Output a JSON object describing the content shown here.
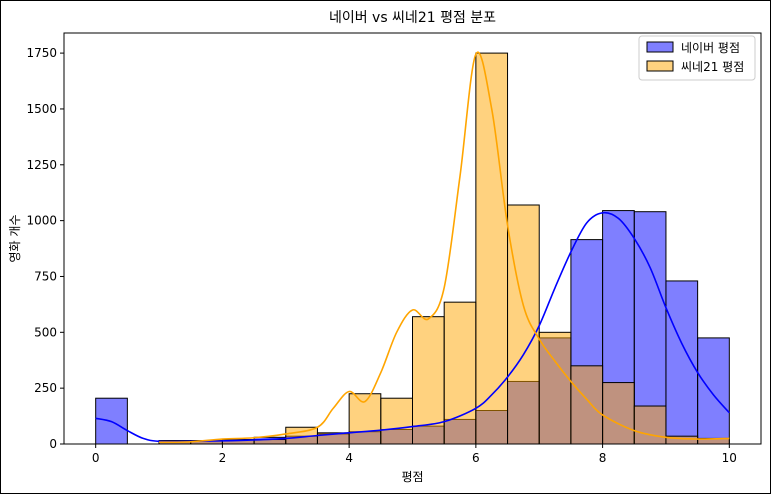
{
  "chart_data": {
    "type": "bar",
    "subtype": "histogram-with-kde",
    "title": "네이버 vs 씨네21 평점 분포",
    "xlabel": "평점",
    "ylabel": "영화 개수",
    "xlim": [
      -0.5,
      10.5
    ],
    "ylim": [
      0,
      1840
    ],
    "x_ticks": [
      0,
      2,
      4,
      6,
      8,
      10
    ],
    "y_ticks": [
      0,
      250,
      500,
      750,
      1000,
      1250,
      1500,
      1750
    ],
    "bin_edges": [
      0,
      0.5,
      1,
      1.5,
      2,
      2.5,
      3,
      3.5,
      4,
      4.5,
      5,
      5.5,
      6,
      6.5,
      7,
      7.5,
      8,
      8.5,
      9,
      9.5,
      10
    ],
    "grid": false,
    "legend_position": "top-right",
    "series": [
      {
        "name": "네이버 평점",
        "color": "#0000ff",
        "bar_fill": "#7f7fff",
        "values": [
          205,
          0,
          15,
          15,
          20,
          30,
          35,
          45,
          55,
          65,
          80,
          110,
          150,
          280,
          475,
          915,
          1045,
          1040,
          730,
          475
        ],
        "kde": [
          [
            0,
            115
          ],
          [
            0.25,
            100
          ],
          [
            0.5,
            60
          ],
          [
            0.75,
            25
          ],
          [
            1,
            12
          ],
          [
            1.5,
            12
          ],
          [
            2,
            14
          ],
          [
            2.5,
            18
          ],
          [
            3,
            25
          ],
          [
            3.5,
            38
          ],
          [
            4,
            50
          ],
          [
            4.5,
            62
          ],
          [
            5,
            78
          ],
          [
            5.5,
            100
          ],
          [
            6,
            160
          ],
          [
            6.25,
            220
          ],
          [
            6.5,
            300
          ],
          [
            6.75,
            400
          ],
          [
            7,
            530
          ],
          [
            7.25,
            700
          ],
          [
            7.5,
            860
          ],
          [
            7.75,
            990
          ],
          [
            8,
            1035
          ],
          [
            8.25,
            1010
          ],
          [
            8.5,
            920
          ],
          [
            8.75,
            790
          ],
          [
            9,
            610
          ],
          [
            9.25,
            450
          ],
          [
            9.5,
            320
          ],
          [
            9.75,
            220
          ],
          [
            10,
            140
          ]
        ]
      },
      {
        "name": "씨네21 평점",
        "color": "#ffa500",
        "bar_fill": "#ffd280",
        "values": [
          0,
          0,
          15,
          15,
          20,
          20,
          75,
          50,
          225,
          205,
          570,
          635,
          1750,
          1070,
          500,
          350,
          275,
          170,
          35,
          25
        ],
        "kde": [
          [
            1,
            8
          ],
          [
            1.5,
            10
          ],
          [
            2,
            22
          ],
          [
            2.5,
            28
          ],
          [
            3,
            45
          ],
          [
            3.5,
            75
          ],
          [
            3.75,
            160
          ],
          [
            4,
            235
          ],
          [
            4.25,
            190
          ],
          [
            4.5,
            320
          ],
          [
            4.75,
            500
          ],
          [
            5,
            600
          ],
          [
            5.25,
            560
          ],
          [
            5.5,
            700
          ],
          [
            5.75,
            1200
          ],
          [
            6,
            1745
          ],
          [
            6.25,
            1500
          ],
          [
            6.5,
            980
          ],
          [
            6.75,
            620
          ],
          [
            7,
            470
          ],
          [
            7.25,
            370
          ],
          [
            7.5,
            280
          ],
          [
            7.75,
            200
          ],
          [
            8,
            130
          ],
          [
            8.5,
            60
          ],
          [
            9,
            30
          ],
          [
            9.5,
            22
          ],
          [
            10,
            25
          ]
        ]
      }
    ]
  }
}
